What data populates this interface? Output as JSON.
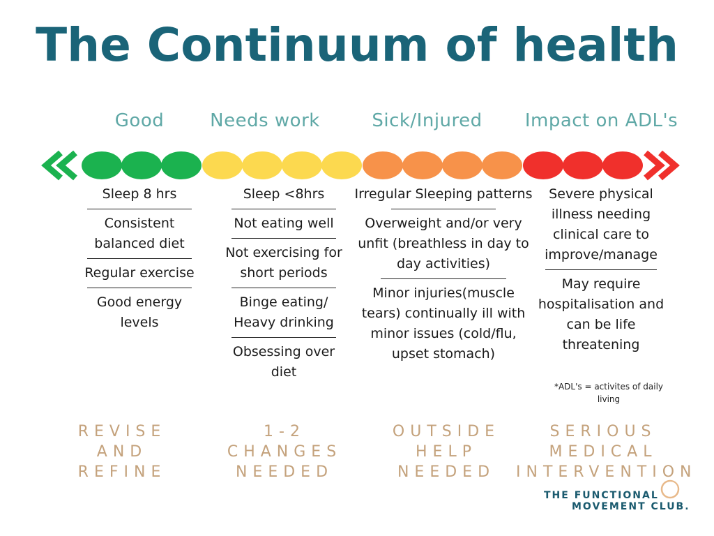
{
  "title": "The Continuum of health",
  "categories": [
    "Good",
    "Needs work",
    "Sick/Injured",
    "Impact on ADL's"
  ],
  "colors": {
    "title": "#1a6478",
    "category": "#5fa8a6",
    "good": "#1bb24f",
    "needs_work": "#fcd94f",
    "sick": "#f7924a",
    "impact": "#f0302c",
    "action": "#c4a27c"
  },
  "columns": [
    {
      "items": [
        "Sleep 8 hrs",
        "Consistent balanced diet",
        "Regular exercise",
        "Good energy levels"
      ]
    },
    {
      "items": [
        "Sleep <8hrs",
        "Not eating well",
        "Not exercising for short periods",
        "Binge eating/ Heavy drinking",
        "Obsessing over diet"
      ]
    },
    {
      "items": [
        "Irregular Sleeping patterns",
        "Overweight and/or very unfit (breathless in day to day activities)",
        "Minor injuries(muscle tears) continually ill with minor issues (cold/flu, upset stomach)"
      ]
    },
    {
      "items": [
        "Severe physical illness needing clinical care to improve/manage",
        "May require hospitalisation and can be life threatening"
      ]
    }
  ],
  "note": "*ADL's = activites of daily living",
  "actions": [
    [
      "REVISE",
      "AND",
      "REFINE"
    ],
    [
      "1-2",
      "CHANGES",
      "NEEDED"
    ],
    [
      "OUTSIDE",
      "HELP",
      "NEEDED"
    ],
    [
      "SERIOUS",
      "MEDICAL",
      "INTERVENTION"
    ]
  ],
  "logo": {
    "line1": "THE FUNCTIONAL",
    "line2": "MOVEMENT CLUB."
  }
}
